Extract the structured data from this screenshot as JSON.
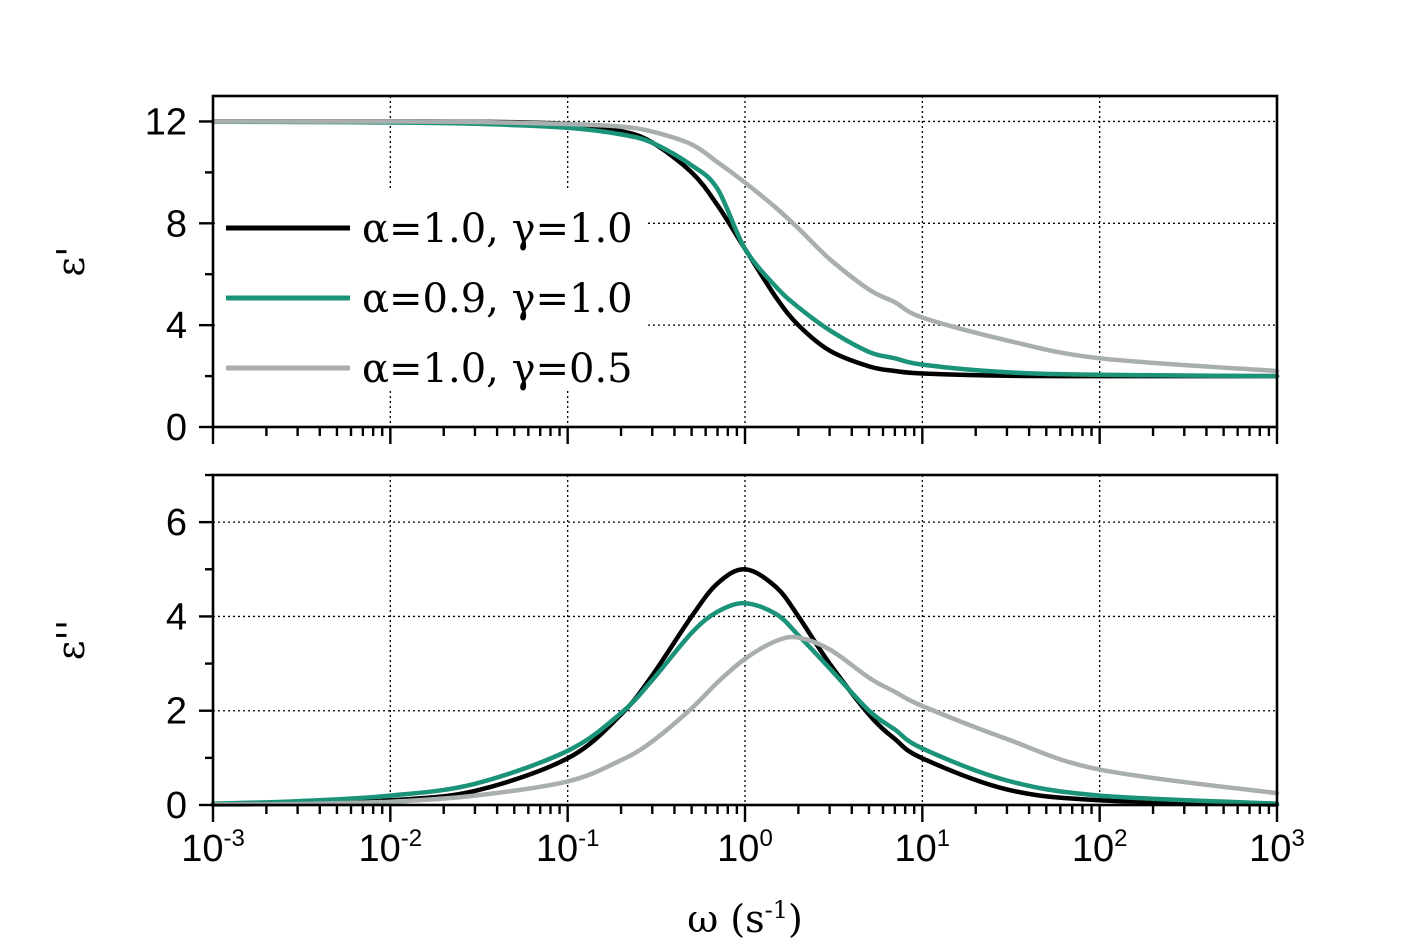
{
  "chart_data": [
    {
      "type": "line",
      "panel": "top",
      "ylabel": "ε'",
      "xlabel": "",
      "xscale": "log",
      "xlim": [
        0.001,
        1000
      ],
      "ylim": [
        0,
        13
      ],
      "yticks": [
        "0",
        "4",
        "8",
        "12"
      ],
      "xtick_exponents": [
        "-3",
        "-2",
        "-1",
        "0",
        "1",
        "2",
        "3"
      ],
      "grid": true,
      "legend_placement": "center-left",
      "series": [
        {
          "name": "α=1.0, γ=1.0",
          "color": "#000000",
          "x": [
            0.001,
            0.003,
            0.01,
            0.03,
            0.1,
            0.2,
            0.3,
            0.5,
            0.7,
            1,
            1.5,
            2,
            3,
            5,
            7,
            10,
            30,
            100,
            1000
          ],
          "y": [
            12.0,
            12.0,
            12.0,
            11.99,
            11.9,
            11.62,
            11.17,
            10.0,
            8.71,
            7.0,
            5.08,
            4.0,
            3.0,
            2.38,
            2.2,
            2.1,
            2.01,
            2.0,
            2.0
          ]
        },
        {
          "name": "α=0.9, γ=1.0",
          "color": "#1b9378",
          "x": [
            0.001,
            0.003,
            0.01,
            0.03,
            0.1,
            0.2,
            0.3,
            0.5,
            0.7,
            1,
            1.5,
            2,
            3,
            5,
            7,
            10,
            30,
            100,
            1000
          ],
          "y": [
            11.99,
            11.98,
            11.96,
            11.91,
            11.75,
            11.49,
            11.16,
            10.28,
            9.35,
            7.0,
            5.5,
            4.7,
            3.8,
            2.95,
            2.7,
            2.45,
            2.15,
            2.05,
            2.0
          ]
        },
        {
          "name": "α=1.0, γ=0.5",
          "color": "#a9aeae",
          "x": [
            0.001,
            0.003,
            0.01,
            0.03,
            0.1,
            0.2,
            0.3,
            0.5,
            0.7,
            1,
            1.5,
            2,
            3,
            5,
            7,
            10,
            30,
            100,
            1000
          ],
          "y": [
            12.0,
            12.0,
            12.0,
            11.98,
            11.9,
            11.8,
            11.6,
            11.1,
            10.4,
            9.6,
            8.6,
            7.8,
            6.6,
            5.4,
            4.9,
            4.3,
            3.4,
            2.7,
            2.2
          ]
        }
      ]
    },
    {
      "type": "line",
      "panel": "bottom",
      "ylabel": "ε''",
      "xlabel": "ω (s",
      "xlabel_sup": "-1",
      "xlabel_tail": ")",
      "xscale": "log",
      "xlim": [
        0.001,
        1000
      ],
      "ylim": [
        0,
        7
      ],
      "yticks": [
        "0",
        "2",
        "4",
        "6"
      ],
      "xtick_exponents": [
        "-3",
        "-2",
        "-1",
        "0",
        "1",
        "2",
        "3"
      ],
      "grid": true,
      "series": [
        {
          "name": "α=1.0, γ=1.0",
          "color": "#000000",
          "x": [
            0.001,
            0.003,
            0.01,
            0.03,
            0.1,
            0.2,
            0.3,
            0.5,
            0.7,
            1,
            1.5,
            2,
            3,
            5,
            7,
            10,
            30,
            100,
            1000
          ],
          "y": [
            0.01,
            0.03,
            0.1,
            0.3,
            0.99,
            1.92,
            2.75,
            4.0,
            4.7,
            5.0,
            4.62,
            4.0,
            3.0,
            1.92,
            1.4,
            0.99,
            0.33,
            0.1,
            0.01
          ]
        },
        {
          "name": "α=0.9, γ=1.0",
          "color": "#1b9378",
          "x": [
            0.001,
            0.003,
            0.01,
            0.03,
            0.1,
            0.2,
            0.3,
            0.5,
            0.7,
            1,
            1.5,
            2,
            3,
            5,
            7,
            10,
            30,
            100,
            1000
          ],
          "y": [
            0.03,
            0.08,
            0.2,
            0.45,
            1.15,
            1.95,
            2.65,
            3.65,
            4.1,
            4.28,
            4.05,
            3.6,
            2.9,
            2.0,
            1.6,
            1.2,
            0.52,
            0.2,
            0.03
          ]
        },
        {
          "name": "α=1.0, γ=0.5",
          "color": "#a9aeae",
          "x": [
            0.001,
            0.003,
            0.01,
            0.03,
            0.1,
            0.2,
            0.3,
            0.5,
            0.7,
            1,
            1.5,
            2,
            3,
            5,
            7,
            10,
            30,
            100,
            1000
          ],
          "y": [
            0.01,
            0.02,
            0.07,
            0.2,
            0.5,
            0.95,
            1.35,
            2.05,
            2.6,
            3.1,
            3.48,
            3.55,
            3.3,
            2.7,
            2.4,
            2.1,
            1.4,
            0.75,
            0.25
          ]
        }
      ]
    }
  ]
}
